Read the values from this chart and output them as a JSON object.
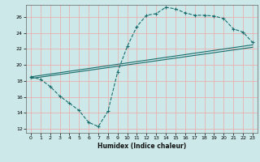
{
  "title": "",
  "xlabel": "Humidex (Indice chaleur)",
  "ylabel": "",
  "bg_color": "#cce8e8",
  "grid_color": "#e8b0b0",
  "line_color": "#1a6e6e",
  "xlim": [
    -0.5,
    23.5
  ],
  "ylim": [
    11.5,
    27.5
  ],
  "xticks": [
    0,
    1,
    2,
    3,
    4,
    5,
    6,
    7,
    8,
    9,
    10,
    11,
    12,
    13,
    14,
    15,
    16,
    17,
    18,
    19,
    20,
    21,
    22,
    23
  ],
  "yticks": [
    12,
    14,
    16,
    18,
    20,
    22,
    24,
    26
  ],
  "curve_x": [
    0,
    1,
    2,
    3,
    4,
    5,
    6,
    7,
    8,
    9,
    10,
    11,
    12,
    13,
    14,
    15,
    16,
    17,
    18,
    19,
    20,
    21,
    22,
    23
  ],
  "curve_y": [
    18.5,
    18.2,
    17.3,
    16.1,
    15.2,
    14.3,
    12.8,
    12.3,
    14.2,
    19.1,
    22.3,
    24.8,
    26.2,
    26.4,
    27.2,
    27.0,
    26.5,
    26.2,
    26.2,
    26.1,
    25.8,
    24.5,
    24.1,
    22.8
  ],
  "line1_x": [
    0,
    23
  ],
  "line1_y": [
    18.5,
    22.5
  ],
  "line2_x": [
    0,
    23
  ],
  "line2_y": [
    18.3,
    22.2
  ],
  "spine_color": "#666666"
}
